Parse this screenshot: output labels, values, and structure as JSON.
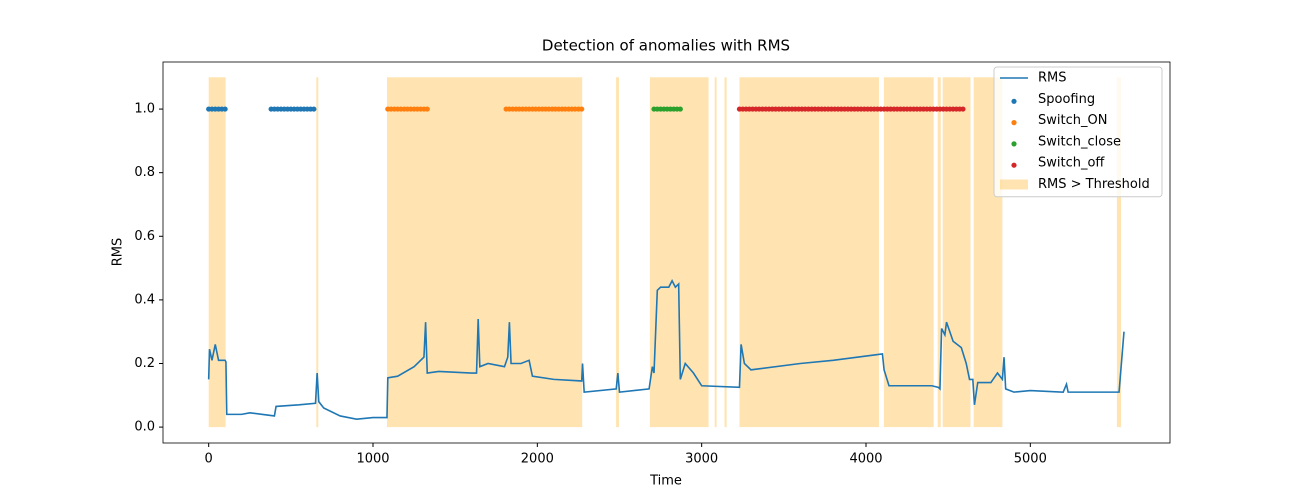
{
  "chart_data": {
    "type": "line",
    "title": "Detection of anomalies with RMS",
    "xlabel": "Time",
    "ylabel": "RMS",
    "xlim": [
      -278,
      5850
    ],
    "ylim": [
      -0.05,
      1.148
    ],
    "xticks": [
      0,
      1000,
      2000,
      3000,
      4000,
      5000
    ],
    "yticks": [
      {
        "value": 0,
        "label": "0.0"
      },
      0.2,
      0.4,
      0.6,
      0.8,
      {
        "value": 1,
        "label": "1.0"
      }
    ],
    "legend": "upper right",
    "spans": {
      "name": "RMS > Threshold",
      "color": "#ffa500",
      "alpha": 0.3,
      "ranges": [
        [
          0,
          103
        ],
        [
          655,
          667
        ],
        [
          1085,
          2273
        ],
        [
          2479,
          2497
        ],
        [
          2685,
          3042
        ],
        [
          3079,
          3091
        ],
        [
          3139,
          3152
        ],
        [
          3230,
          4079
        ],
        [
          4109,
          4412
        ],
        [
          4436,
          4455
        ],
        [
          4467,
          4636
        ],
        [
          4655,
          4830
        ],
        [
          5527,
          5552
        ]
      ]
    },
    "series": [
      {
        "name": "RMS",
        "type": "line",
        "color": "#1f77b4",
        "x": [
          0,
          5,
          20,
          40,
          60,
          100,
          105,
          110,
          200,
          250,
          400,
          410,
          550,
          650,
          660,
          670,
          700,
          800,
          900,
          1000,
          1085,
          1090,
          1150,
          1250,
          1310,
          1320,
          1330,
          1400,
          1600,
          1630,
          1640,
          1650,
          1700,
          1800,
          1820,
          1830,
          1840,
          1900,
          1950,
          1970,
          2100,
          2270,
          2275,
          2285,
          2480,
          2490,
          2500,
          2680,
          2700,
          2710,
          2730,
          2750,
          2800,
          2820,
          2840,
          2860,
          2870,
          2900,
          2950,
          3000,
          3230,
          3240,
          3260,
          3300,
          3600,
          3800,
          4100,
          4110,
          4140,
          4400,
          4440,
          4450,
          4460,
          4480,
          4490,
          4530,
          4580,
          4610,
          4630,
          4650,
          4660,
          4680,
          4760,
          4800,
          4830,
          4840,
          4850,
          4900,
          5000,
          5200,
          5220,
          5230,
          5540,
          5570
        ],
        "values": [
          0.15,
          0.245,
          0.21,
          0.26,
          0.21,
          0.21,
          0.205,
          0.04,
          0.04,
          0.045,
          0.035,
          0.065,
          0.07,
          0.075,
          0.17,
          0.08,
          0.06,
          0.035,
          0.025,
          0.03,
          0.03,
          0.155,
          0.16,
          0.19,
          0.22,
          0.33,
          0.17,
          0.175,
          0.17,
          0.17,
          0.34,
          0.19,
          0.2,
          0.19,
          0.22,
          0.33,
          0.2,
          0.2,
          0.21,
          0.16,
          0.15,
          0.145,
          0.2,
          0.11,
          0.12,
          0.17,
          0.11,
          0.12,
          0.19,
          0.17,
          0.43,
          0.44,
          0.44,
          0.46,
          0.44,
          0.45,
          0.15,
          0.2,
          0.17,
          0.13,
          0.125,
          0.26,
          0.2,
          0.18,
          0.2,
          0.21,
          0.23,
          0.18,
          0.13,
          0.13,
          0.125,
          0.12,
          0.31,
          0.29,
          0.33,
          0.27,
          0.25,
          0.2,
          0.15,
          0.15,
          0.07,
          0.14,
          0.14,
          0.17,
          0.15,
          0.22,
          0.12,
          0.11,
          0.115,
          0.11,
          0.135,
          0.11,
          0.11,
          0.3
        ]
      },
      {
        "name": "Spoofing",
        "type": "scatter",
        "color": "#1f77b4",
        "x": [
          0,
          20,
          40,
          60,
          80,
          100,
          380,
          400,
          420,
          440,
          460,
          480,
          500,
          520,
          540,
          560,
          580,
          600,
          620,
          640
        ],
        "values": [
          1,
          1,
          1,
          1,
          1,
          1,
          1,
          1,
          1,
          1,
          1,
          1,
          1,
          1,
          1,
          1,
          1,
          1,
          1,
          1
        ]
      },
      {
        "name": "Switch_ON",
        "type": "scatter",
        "color": "#ff7f0e",
        "x": [
          1090,
          1110,
          1130,
          1150,
          1170,
          1190,
          1210,
          1230,
          1250,
          1270,
          1290,
          1310,
          1330,
          1810,
          1830,
          1850,
          1870,
          1890,
          1910,
          1930,
          1950,
          1970,
          1990,
          2010,
          2030,
          2050,
          2070,
          2090,
          2110,
          2130,
          2150,
          2170,
          2190,
          2210,
          2230,
          2250,
          2270
        ],
        "values": [
          1,
          1,
          1,
          1,
          1,
          1,
          1,
          1,
          1,
          1,
          1,
          1,
          1,
          1,
          1,
          1,
          1,
          1,
          1,
          1,
          1,
          1,
          1,
          1,
          1,
          1,
          1,
          1,
          1,
          1,
          1,
          1,
          1,
          1,
          1,
          1,
          1
        ]
      },
      {
        "name": "Switch_close",
        "type": "scatter",
        "color": "#2ca02c",
        "x": [
          2710,
          2730,
          2750,
          2770,
          2790,
          2810,
          2830,
          2850,
          2870
        ],
        "values": [
          1,
          1,
          1,
          1,
          1,
          1,
          1,
          1,
          1
        ]
      },
      {
        "name": "Switch_off",
        "type": "scatter",
        "color": "#d62728",
        "x": [
          3230,
          3250,
          3270,
          3290,
          3310,
          3330,
          3350,
          3370,
          3390,
          3410,
          3430,
          3450,
          3470,
          3490,
          3510,
          3530,
          3550,
          3570,
          3590,
          3610,
          3630,
          3650,
          3670,
          3690,
          3710,
          3730,
          3750,
          3770,
          3790,
          3810,
          3830,
          3850,
          3870,
          3890,
          3910,
          3930,
          3950,
          3970,
          3990,
          4010,
          4030,
          4050,
          4070,
          4090,
          4110,
          4130,
          4150,
          4170,
          4190,
          4210,
          4230,
          4250,
          4270,
          4290,
          4310,
          4330,
          4350,
          4370,
          4390,
          4410,
          4430,
          4450,
          4470,
          4490,
          4510,
          4530,
          4550,
          4570,
          4590
        ],
        "values": [
          1,
          1,
          1,
          1,
          1,
          1,
          1,
          1,
          1,
          1,
          1,
          1,
          1,
          1,
          1,
          1,
          1,
          1,
          1,
          1,
          1,
          1,
          1,
          1,
          1,
          1,
          1,
          1,
          1,
          1,
          1,
          1,
          1,
          1,
          1,
          1,
          1,
          1,
          1,
          1,
          1,
          1,
          1,
          1,
          1,
          1,
          1,
          1,
          1,
          1,
          1,
          1,
          1,
          1,
          1,
          1,
          1,
          1,
          1,
          1,
          1,
          1,
          1,
          1,
          1,
          1,
          1,
          1,
          1
        ]
      }
    ]
  }
}
